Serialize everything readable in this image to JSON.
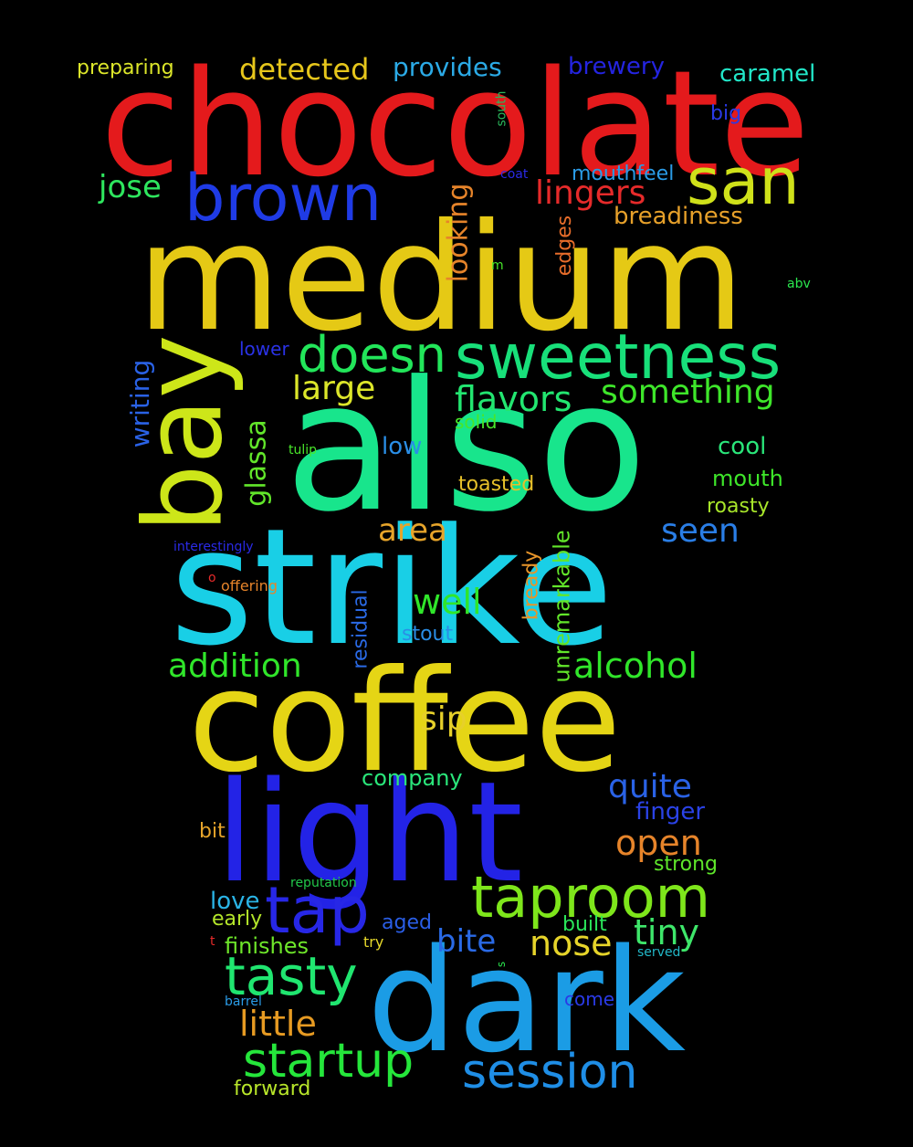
{
  "words": [
    {
      "text": "chocolate",
      "color": "#e41a1c"
    },
    {
      "text": "medium",
      "color": "#e5c915"
    },
    {
      "text": "also",
      "color": "#18e58c"
    },
    {
      "text": "strike",
      "color": "#19cfe6"
    },
    {
      "text": "coffee",
      "color": "#e5d515"
    },
    {
      "text": "light",
      "color": "#2323e6"
    },
    {
      "text": "dark",
      "color": "#1b9ce5"
    },
    {
      "text": "bay",
      "color": "#cde619"
    },
    {
      "text": "brown",
      "color": "#1f3be6"
    },
    {
      "text": "san",
      "color": "#cfe11a"
    },
    {
      "text": "sweetness",
      "color": "#18e07a"
    },
    {
      "text": "doesn",
      "color": "#22e65a"
    },
    {
      "text": "taproom",
      "color": "#7ee61b"
    },
    {
      "text": "tap",
      "color": "#2727e6"
    },
    {
      "text": "tasty",
      "color": "#20e670"
    },
    {
      "text": "startup",
      "color": "#25e63b"
    },
    {
      "text": "session",
      "color": "#1f8ee6"
    },
    {
      "text": "little",
      "color": "#e69a22"
    },
    {
      "text": "flavors",
      "color": "#22e670"
    },
    {
      "text": "something",
      "color": "#3ee62a"
    },
    {
      "text": "lingers",
      "color": "#e62a2a"
    },
    {
      "text": "detected",
      "color": "#e6c61b"
    },
    {
      "text": "provides",
      "color": "#2baae6"
    },
    {
      "text": "brewery",
      "color": "#2424e0"
    },
    {
      "text": "caramel",
      "color": "#22e6c8"
    },
    {
      "text": "preparing",
      "color": "#dce62a"
    },
    {
      "text": "jose",
      "color": "#2ee65e"
    },
    {
      "text": "looking",
      "color": "#e6842a"
    },
    {
      "text": "breadiness",
      "color": "#e6a02a"
    },
    {
      "text": "mouthfeel",
      "color": "#2a9be6"
    },
    {
      "text": "big",
      "color": "#2a3ae6"
    },
    {
      "text": "south",
      "color": "#2ab85c"
    },
    {
      "text": "coat",
      "color": "#2a2ae6"
    },
    {
      "text": "edges",
      "color": "#e66c2a"
    },
    {
      "text": "m",
      "color": "#48e62a"
    },
    {
      "text": "abv",
      "color": "#2ae64e"
    },
    {
      "text": "large",
      "color": "#dce62a"
    },
    {
      "text": "glassa",
      "color": "#62e62a"
    },
    {
      "text": "writing",
      "color": "#2a62e6"
    },
    {
      "text": "lower",
      "color": "#2a32e6"
    },
    {
      "text": "solid",
      "color": "#48e62a"
    },
    {
      "text": "low",
      "color": "#2a8ee6"
    },
    {
      "text": "cool",
      "color": "#2ae67a"
    },
    {
      "text": "tulip",
      "color": "#48e62a"
    },
    {
      "text": "toasted",
      "color": "#e6c02a"
    },
    {
      "text": "mouth",
      "color": "#3ee62a"
    },
    {
      "text": "roasty",
      "color": "#a8e62a"
    },
    {
      "text": "area",
      "color": "#e6a42a"
    },
    {
      "text": "seen",
      "color": "#2a7ee6"
    },
    {
      "text": "interestingly",
      "color": "#2a2ae6"
    },
    {
      "text": "o",
      "color": "#e62a2a"
    },
    {
      "text": "offering",
      "color": "#e6842a"
    },
    {
      "text": "well",
      "color": "#30e62a"
    },
    {
      "text": "residual",
      "color": "#2a6ae6"
    },
    {
      "text": "bready",
      "color": "#e6942a"
    },
    {
      "text": "unremarkable",
      "color": "#62e62a"
    },
    {
      "text": "stout",
      "color": "#2a8ee6"
    },
    {
      "text": "addition",
      "color": "#30e62a"
    },
    {
      "text": "alcohol",
      "color": "#30e62a"
    },
    {
      "text": "sip",
      "color": "#e6d02a"
    },
    {
      "text": "company",
      "color": "#2ae67a"
    },
    {
      "text": "quite",
      "color": "#2a62e6"
    },
    {
      "text": "finger",
      "color": "#2a42e6"
    },
    {
      "text": "open",
      "color": "#e6842a"
    },
    {
      "text": "bit",
      "color": "#e6a42a"
    },
    {
      "text": "strong",
      "color": "#5ee62a"
    },
    {
      "text": "reputation",
      "color": "#22c84a"
    },
    {
      "text": "love",
      "color": "#2ab4e6"
    },
    {
      "text": "early",
      "color": "#b4e62a"
    },
    {
      "text": "aged",
      "color": "#2a5ee6"
    },
    {
      "text": "built",
      "color": "#2ae65a"
    },
    {
      "text": "tiny",
      "color": "#3ee66a"
    },
    {
      "text": "bite",
      "color": "#2a6ae6"
    },
    {
      "text": "nose",
      "color": "#e6d42a"
    },
    {
      "text": "t",
      "color": "#e62a2a"
    },
    {
      "text": "finishes",
      "color": "#6ee62a"
    },
    {
      "text": "try",
      "color": "#e6d82a"
    },
    {
      "text": "served",
      "color": "#22b8c8"
    },
    {
      "text": "s",
      "color": "#2ae64e"
    },
    {
      "text": "barrel",
      "color": "#2a9be6"
    },
    {
      "text": "come",
      "color": "#2a3ae6"
    },
    {
      "text": "forward",
      "color": "#b8e62a"
    }
  ]
}
